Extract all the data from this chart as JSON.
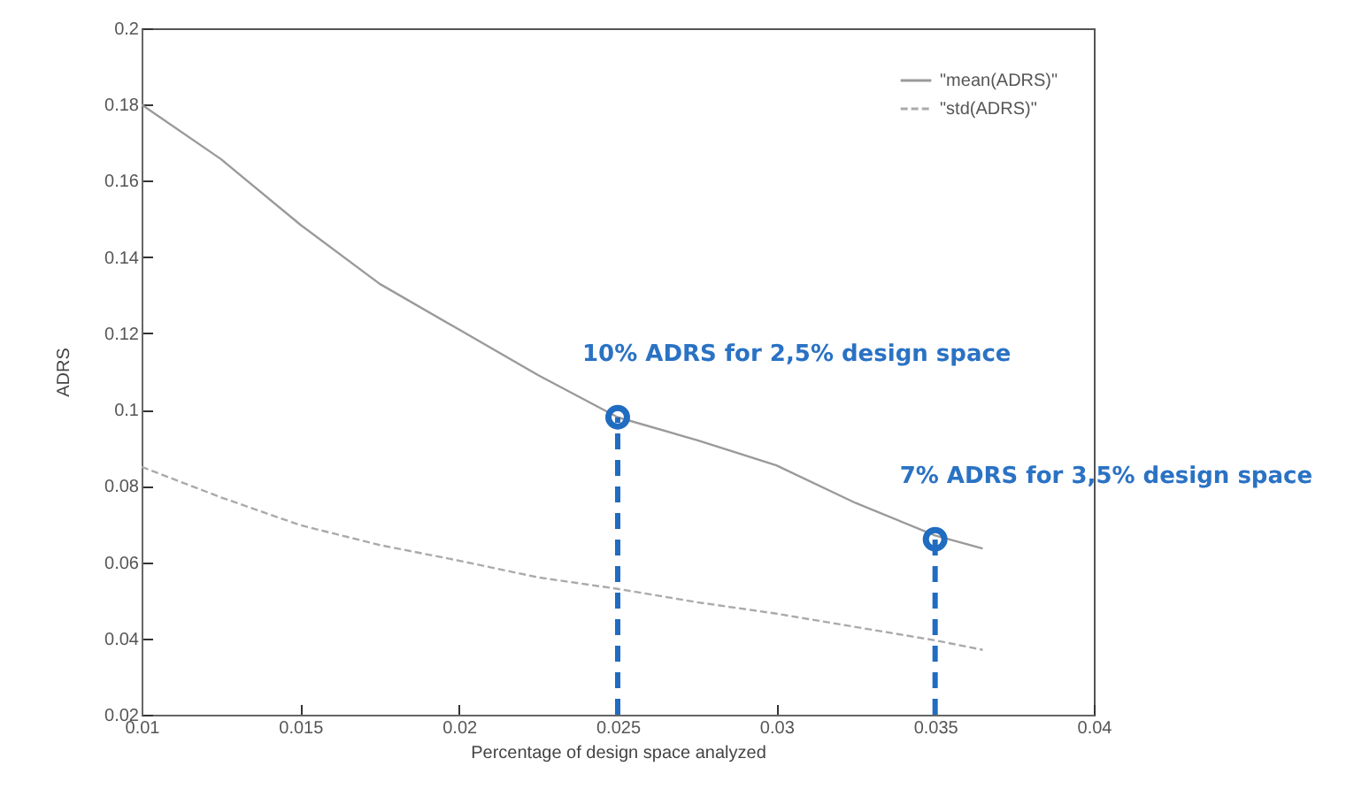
{
  "chart_data": {
    "type": "line",
    "xlabel": "Percentage of design space analyzed",
    "ylabel": "ADRS",
    "xlim": [
      0.01,
      0.04
    ],
    "xticks": [
      0.01,
      0.015,
      0.02,
      0.025,
      0.03,
      0.035,
      0.04
    ],
    "ylim": [
      0.02,
      0.2
    ],
    "yticks": [
      0.02,
      0.04,
      0.06,
      0.08,
      0.1,
      0.12,
      0.14,
      0.16,
      0.18,
      0.2
    ],
    "legend": "top right",
    "grid": false,
    "series": [
      {
        "name": "\"mean(ADRS)\"",
        "color": "#9a9a9a",
        "line_style": "solid",
        "x": [
          0.01,
          0.0125,
          0.015,
          0.0175,
          0.02,
          0.0225,
          0.025,
          0.0275,
          0.03,
          0.0325,
          0.035,
          0.0365
        ],
        "values": [
          0.18,
          0.1657,
          0.1485,
          0.133,
          0.121,
          0.109,
          0.098,
          0.092,
          0.0854,
          0.0755,
          0.067,
          0.0636
        ]
      },
      {
        "name": "\"std(ADRS)\"",
        "color": "#aaaaaa",
        "line_style": "dashed",
        "x": [
          0.01,
          0.0125,
          0.015,
          0.0175,
          0.02,
          0.0225,
          0.025,
          0.0275,
          0.03,
          0.0325,
          0.035,
          0.0365
        ],
        "values": [
          0.085,
          0.077,
          0.0697,
          0.0645,
          0.0604,
          0.056,
          0.053,
          0.0495,
          0.0465,
          0.043,
          0.0395,
          0.037
        ]
      }
    ],
    "ref_lines": [
      {
        "axis": "x",
        "value": 0.025,
        "color": "#1f6cc0",
        "line_style": "dashed"
      },
      {
        "axis": "x",
        "value": 0.035,
        "color": "#1f6cc0",
        "line_style": "dashed"
      }
    ],
    "annotations": [
      {
        "text": "10% ADRS for 2,5% design space",
        "x": 0.025,
        "y": 0.098
      },
      {
        "text": "7% ADRS for 3,5% design space",
        "x": 0.035,
        "y": 0.066
      }
    ]
  }
}
